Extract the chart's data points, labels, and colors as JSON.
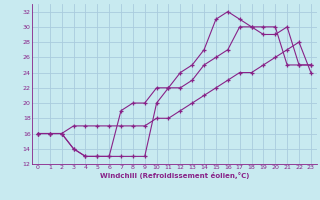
{
  "xlabel": "Windchill (Refroidissement éolien,°C)",
  "bg_color": "#c8eaf0",
  "grid_color": "#aaccdd",
  "line_color": "#882288",
  "xlim": [
    -0.5,
    23.5
  ],
  "ylim": [
    12,
    33
  ],
  "xticks": [
    0,
    1,
    2,
    3,
    4,
    5,
    6,
    7,
    8,
    9,
    10,
    11,
    12,
    13,
    14,
    15,
    16,
    17,
    18,
    19,
    20,
    21,
    22,
    23
  ],
  "yticks": [
    12,
    14,
    16,
    18,
    20,
    22,
    24,
    26,
    28,
    30,
    32
  ],
  "line1_x": [
    0,
    1,
    2,
    3,
    4,
    5,
    6,
    7,
    8,
    9,
    10,
    11,
    12,
    13,
    14,
    15,
    16,
    17,
    18,
    19,
    20,
    21,
    22,
    23
  ],
  "line1_y": [
    16,
    16,
    16,
    17,
    17,
    17,
    17,
    17,
    17,
    17,
    18,
    18,
    19,
    20,
    21,
    22,
    23,
    24,
    24,
    25,
    26,
    27,
    28,
    24
  ],
  "line2_x": [
    0,
    1,
    2,
    3,
    4,
    5,
    6,
    7,
    8,
    9,
    10,
    11,
    12,
    13,
    14,
    15,
    16,
    17,
    18,
    19,
    20,
    21,
    22,
    23
  ],
  "line2_y": [
    16,
    16,
    16,
    14,
    13,
    13,
    13,
    13,
    13,
    13,
    20,
    22,
    22,
    23,
    25,
    26,
    27,
    30,
    30,
    30,
    30,
    25,
    25,
    25
  ],
  "line3_x": [
    0,
    1,
    2,
    3,
    4,
    5,
    6,
    7,
    8,
    9,
    10,
    11,
    12,
    13,
    14,
    15,
    16,
    17,
    18,
    19,
    20,
    21,
    22,
    23
  ],
  "line3_y": [
    16,
    16,
    16,
    14,
    13,
    13,
    13,
    19,
    20,
    20,
    22,
    22,
    24,
    25,
    27,
    31,
    32,
    31,
    30,
    29,
    29,
    30,
    25,
    25
  ]
}
